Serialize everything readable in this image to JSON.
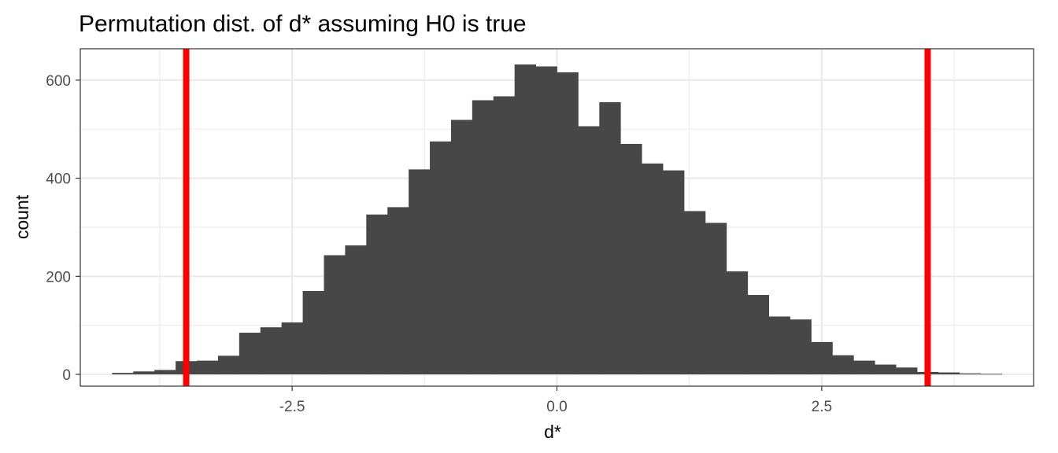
{
  "chart_data": {
    "type": "bar",
    "title": "Permutation dist. of d* assuming H0 is true",
    "xlabel": "d*",
    "ylabel": "count",
    "xlim": [
      -4.5,
      4.5
    ],
    "ylim": [
      -24,
      664
    ],
    "x_ticks": [
      -2.5,
      0.0,
      2.5
    ],
    "x_tick_labels": [
      "-2.5",
      "0.0",
      "2.5"
    ],
    "x_minor_gridlines": [
      -3.75,
      -1.25,
      1.25,
      3.75
    ],
    "y_ticks": [
      0,
      200,
      400,
      600
    ],
    "y_tick_labels": [
      "0",
      "200",
      "400",
      "600"
    ],
    "y_minor_gridlines": [
      100,
      300,
      500
    ],
    "grid": true,
    "legend": "none",
    "bin_width": 0.2,
    "bin_centers": [
      -4.1,
      -3.9,
      -3.7,
      -3.5,
      -3.3,
      -3.1,
      -2.9,
      -2.7,
      -2.5,
      -2.3,
      -2.1,
      -1.9,
      -1.7,
      -1.5,
      -1.3,
      -1.1,
      -0.9,
      -0.7,
      -0.5,
      -0.3,
      -0.1,
      0.1,
      0.3,
      0.5,
      0.7,
      0.9,
      1.1,
      1.3,
      1.5,
      1.7,
      1.9,
      2.1,
      2.3,
      2.5,
      2.7,
      2.9,
      3.1,
      3.3,
      3.5,
      3.7,
      3.9,
      4.1,
      4.3
    ],
    "counts": [
      3,
      6,
      9,
      27,
      28,
      38,
      85,
      96,
      106,
      170,
      243,
      263,
      326,
      341,
      418,
      475,
      519,
      559,
      567,
      632,
      628,
      616,
      506,
      555,
      470,
      430,
      416,
      333,
      309,
      210,
      162,
      118,
      112,
      66,
      39,
      28,
      20,
      14,
      5,
      4,
      2,
      1,
      0
    ],
    "vlines": [
      -3.5,
      3.5
    ],
    "colors": {
      "bars": "#474747",
      "vlines": "#ff0000",
      "grid": "#ebebeb",
      "panel_border": "#333333",
      "tick_text": "#4d4d4d"
    }
  }
}
